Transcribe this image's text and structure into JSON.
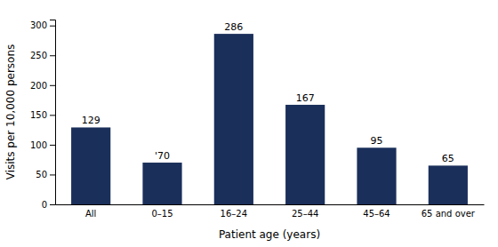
{
  "chart_data": {
    "type": "bar",
    "categories": [
      "All",
      "0–15",
      "16–24",
      "25–44",
      "45–64",
      "65 and over"
    ],
    "values": [
      129,
      70,
      286,
      167,
      95,
      65
    ],
    "value_labels": [
      "129",
      "'70",
      "286",
      "167",
      "95",
      "65"
    ],
    "data_labels": true,
    "color": "#1a2f5a",
    "xlabel": "Patient age (years)",
    "ylabel": "Visits per 10,000 persons",
    "ylim": [
      0,
      310
    ],
    "yticks": [
      0,
      50,
      100,
      150,
      200,
      250,
      300
    ],
    "grid": false
  }
}
